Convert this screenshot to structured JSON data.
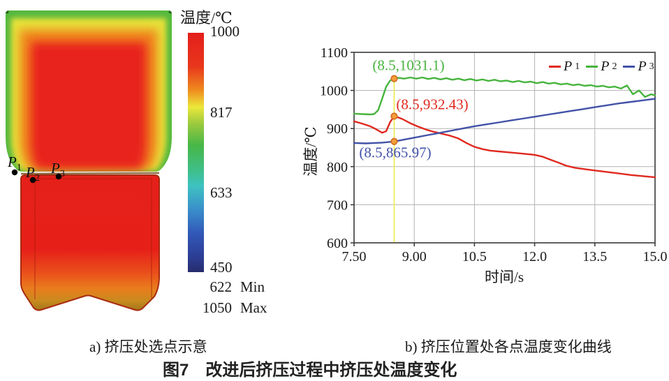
{
  "figure": {
    "caption": "图7　改进后挤压过程中挤压处温度变化",
    "panel_a": {
      "caption": "a) 挤压处选点示意",
      "points": [
        {
          "base": "P",
          "sub": "1"
        },
        {
          "base": "P",
          "sub": "2"
        },
        {
          "base": "P",
          "sub": "3"
        }
      ],
      "colorbar": {
        "title": "温度/℃",
        "tick_labels": [
          "1000",
          "817",
          "633",
          "450"
        ],
        "min_label": {
          "value": "622",
          "text": "Min"
        },
        "max_label": {
          "value": "1050",
          "text": "Max"
        },
        "gradient_stops": [
          "#e41f1c 0%",
          "#e8361c 14%",
          "#ef8c1e 24%",
          "#ece73a 31%",
          "#9aca3d 38%",
          "#47b747 47%",
          "#3fbf8c 58%",
          "#3ec2c2 64%",
          "#3a8ecb 74%",
          "#3157b8 84%",
          "#2c3d92 94%",
          "#262c6d 100%"
        ]
      }
    },
    "panel_b": {
      "caption": "b) 挤压位置处各点温度变化曲线"
    }
  },
  "chart_data": {
    "type": "line",
    "title": "",
    "xlabel": "时间/s",
    "ylabel": "温度/℃",
    "xlim": [
      7.5,
      15.0
    ],
    "ylim": [
      600,
      1100
    ],
    "grid": true,
    "legend_position": "top-right-inside",
    "xticks": {
      "values": [
        7.5,
        9.0,
        10.5,
        12.0,
        13.5,
        15.0
      ],
      "labels": [
        "7.50",
        "9.00",
        "10.5",
        "12.0",
        "13.5",
        "15.0"
      ]
    },
    "yticks": {
      "values": [
        600,
        700,
        800,
        900,
        1000,
        1100
      ],
      "labels": [
        "600",
        "700",
        "800",
        "900",
        "1000",
        "1100"
      ]
    },
    "highlight_x": 8.5,
    "highlight_line_color": "#f1ec52",
    "marker_color": "#f59d3a",
    "marker_edge_color": "#cf6a1e",
    "series": [
      {
        "name": "P1",
        "label_base": "P",
        "label_sub": "1",
        "color": "#e0291f",
        "points": [
          [
            7.5,
            919
          ],
          [
            7.7,
            913
          ],
          [
            7.9,
            906
          ],
          [
            8.0,
            901
          ],
          [
            8.1,
            895
          ],
          [
            8.2,
            889
          ],
          [
            8.3,
            893
          ],
          [
            8.4,
            917
          ],
          [
            8.5,
            932.43
          ],
          [
            8.55,
            931
          ],
          [
            8.7,
            925
          ],
          [
            8.9,
            914
          ],
          [
            9.1,
            905
          ],
          [
            9.3,
            897
          ],
          [
            9.5,
            891
          ],
          [
            9.7,
            886
          ],
          [
            9.9,
            881
          ],
          [
            10.1,
            874
          ],
          [
            10.3,
            862
          ],
          [
            10.5,
            852
          ],
          [
            10.7,
            846
          ],
          [
            10.9,
            842
          ],
          [
            11.1,
            840
          ],
          [
            11.4,
            837
          ],
          [
            11.7,
            834
          ],
          [
            12.0,
            831
          ],
          [
            12.2,
            826
          ],
          [
            12.4,
            818
          ],
          [
            12.6,
            810
          ],
          [
            12.8,
            802
          ],
          [
            13.0,
            797
          ],
          [
            13.2,
            794
          ],
          [
            13.5,
            790
          ],
          [
            13.8,
            786
          ],
          [
            14.1,
            782
          ],
          [
            14.4,
            778
          ],
          [
            14.7,
            775
          ],
          [
            15.0,
            772
          ]
        ]
      },
      {
        "name": "P2",
        "label_base": "P",
        "label_sub": "2",
        "color": "#47b43e",
        "points": [
          [
            7.5,
            939
          ],
          [
            7.7,
            938
          ],
          [
            7.9,
            937
          ],
          [
            8.0,
            938
          ],
          [
            8.1,
            948
          ],
          [
            8.2,
            978
          ],
          [
            8.3,
            1010
          ],
          [
            8.4,
            1026
          ],
          [
            8.5,
            1031.1
          ],
          [
            8.6,
            1033
          ],
          [
            8.75,
            1031
          ],
          [
            8.9,
            1034
          ],
          [
            9.05,
            1031
          ],
          [
            9.2,
            1034
          ],
          [
            9.35,
            1030
          ],
          [
            9.5,
            1033
          ],
          [
            9.65,
            1029
          ],
          [
            9.8,
            1032
          ],
          [
            9.95,
            1028
          ],
          [
            10.1,
            1031
          ],
          [
            10.25,
            1027
          ],
          [
            10.4,
            1030
          ],
          [
            10.55,
            1026
          ],
          [
            10.7,
            1029
          ],
          [
            10.85,
            1025
          ],
          [
            11.0,
            1028
          ],
          [
            11.15,
            1024
          ],
          [
            11.3,
            1026
          ],
          [
            11.45,
            1022
          ],
          [
            11.6,
            1025
          ],
          [
            11.75,
            1021
          ],
          [
            11.9,
            1023
          ],
          [
            12.05,
            1019
          ],
          [
            12.2,
            1022
          ],
          [
            12.35,
            1018
          ],
          [
            12.5,
            1020
          ],
          [
            12.65,
            1016
          ],
          [
            12.8,
            1018
          ],
          [
            12.95,
            1014
          ],
          [
            13.1,
            1016
          ],
          [
            13.25,
            1012
          ],
          [
            13.4,
            1014
          ],
          [
            13.55,
            1010
          ],
          [
            13.7,
            1012
          ],
          [
            13.85,
            1008
          ],
          [
            14.0,
            1010
          ],
          [
            14.15,
            1005
          ],
          [
            14.3,
            1013
          ],
          [
            14.45,
            990
          ],
          [
            14.6,
            1000
          ],
          [
            14.75,
            983
          ],
          [
            14.9,
            990
          ],
          [
            15.0,
            987
          ]
        ]
      },
      {
        "name": "P3",
        "label_base": "P",
        "label_sub": "3",
        "color": "#4252a8",
        "points": [
          [
            7.5,
            862
          ],
          [
            7.8,
            861
          ],
          [
            8.0,
            862
          ],
          [
            8.2,
            863
          ],
          [
            8.4,
            865
          ],
          [
            8.5,
            865.97
          ],
          [
            8.7,
            870
          ],
          [
            9.0,
            876
          ],
          [
            9.3,
            882
          ],
          [
            9.6,
            888
          ],
          [
            9.9,
            894
          ],
          [
            10.2,
            900
          ],
          [
            10.5,
            906
          ],
          [
            10.8,
            911
          ],
          [
            11.1,
            916
          ],
          [
            11.4,
            921
          ],
          [
            11.7,
            926
          ],
          [
            12.0,
            931
          ],
          [
            12.3,
            936
          ],
          [
            12.6,
            941
          ],
          [
            12.9,
            946
          ],
          [
            13.2,
            951
          ],
          [
            13.5,
            956
          ],
          [
            13.8,
            961
          ],
          [
            14.1,
            966
          ],
          [
            14.4,
            970
          ],
          [
            14.7,
            974
          ],
          [
            15.0,
            978
          ]
        ]
      }
    ],
    "annotations": [
      {
        "series": "P2",
        "text": "(8.5,1031.1)",
        "x": 8.5,
        "y": 1031.1,
        "color": "#47b43e"
      },
      {
        "series": "P1",
        "text": "(8.5,932.43)",
        "x": 8.5,
        "y": 932.43,
        "color": "#e0291f"
      },
      {
        "series": "P3",
        "text": "(8.5,865.97)",
        "x": 8.5,
        "y": 865.97,
        "color": "#4252a8"
      }
    ]
  }
}
